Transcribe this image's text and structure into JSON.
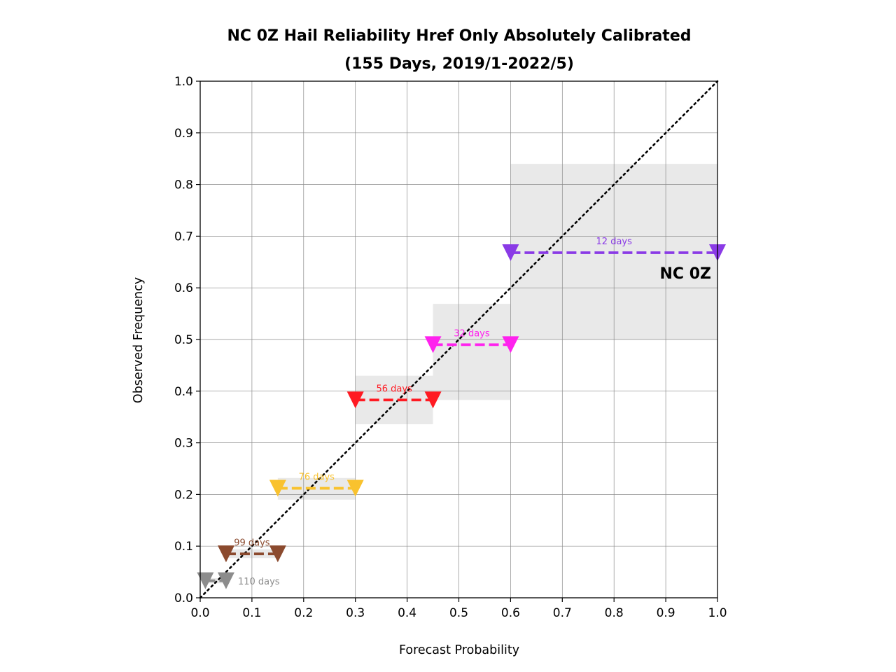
{
  "chart_data": {
    "type": "line",
    "title_lines": [
      "NC 0Z Hail Reliability Href Only Absolutely Calibrated",
      "(155 Days, 2019/1-2022/5)"
    ],
    "xlabel": "Forecast Probability",
    "ylabel": "Observed Frequency",
    "xlim": [
      0.0,
      1.0
    ],
    "ylim": [
      0.0,
      1.0
    ],
    "xticks": [
      0.0,
      0.1,
      0.2,
      0.3,
      0.4,
      0.5,
      0.6,
      0.7,
      0.8,
      0.9,
      1.0
    ],
    "yticks": [
      0.0,
      0.1,
      0.2,
      0.3,
      0.4,
      0.5,
      0.6,
      0.7,
      0.8,
      0.9,
      1.0
    ],
    "xtick_labels": [
      "0.0",
      "0.1",
      "0.2",
      "0.3",
      "0.4",
      "0.5",
      "0.6",
      "0.7",
      "0.8",
      "0.9",
      "1.0"
    ],
    "ytick_labels": [
      "0.0",
      "0.1",
      "0.2",
      "0.3",
      "0.4",
      "0.5",
      "0.6",
      "0.7",
      "0.8",
      "0.9",
      "1.0"
    ],
    "grid": true,
    "diagonal": {
      "x": [
        0.0,
        1.0
      ],
      "y": [
        0.0,
        1.0
      ],
      "color": "#000000",
      "style": "dotted"
    },
    "region_label": "NC 0Z",
    "bins": [
      {
        "x_start": 0.01,
        "x_end": 0.05,
        "observed": 0.033,
        "ci": [
          0.028,
          0.038
        ],
        "days_label": "110 days",
        "color": "#8c8c8c"
      },
      {
        "x_start": 0.05,
        "x_end": 0.15,
        "observed": 0.085,
        "ci": [
          0.077,
          0.094
        ],
        "days_label": "99 days",
        "color": "#8b4a2e"
      },
      {
        "x_start": 0.15,
        "x_end": 0.3,
        "observed": 0.212,
        "ci": [
          0.19,
          0.232
        ],
        "days_label": "76 days",
        "color": "#f9c22e"
      },
      {
        "x_start": 0.3,
        "x_end": 0.45,
        "observed": 0.383,
        "ci": [
          0.336,
          0.43
        ],
        "days_label": "56 days",
        "color": "#ff1a22"
      },
      {
        "x_start": 0.45,
        "x_end": 0.6,
        "observed": 0.49,
        "ci": [
          0.383,
          0.569
        ],
        "days_label": "32 days",
        "color": "#ff22ee"
      },
      {
        "x_start": 0.6,
        "x_end": 1.0,
        "observed": 0.668,
        "ci": [
          0.5,
          0.84
        ],
        "days_label": "12 days",
        "color": "#8a3ae6"
      }
    ]
  }
}
